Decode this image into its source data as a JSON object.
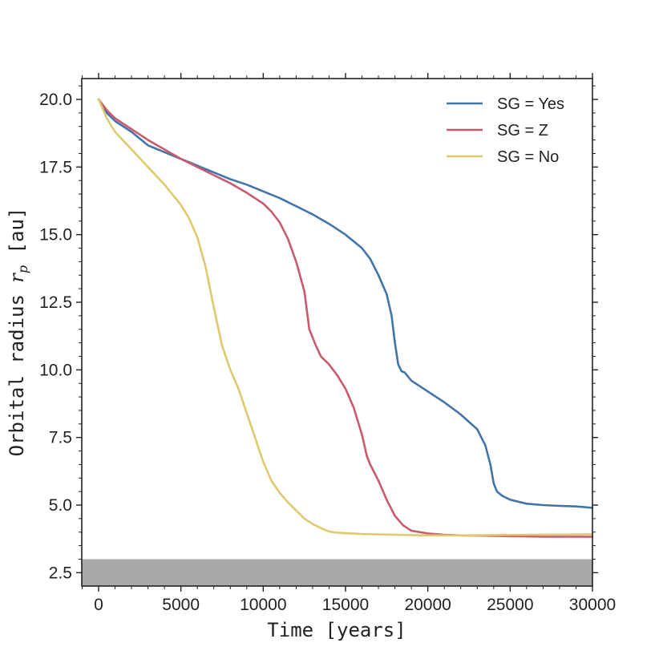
{
  "chart_data": {
    "type": "line",
    "xlabel": "Time [years]",
    "ylabel_text": "Orbital radius ",
    "ylabel_symbol": "r",
    "ylabel_subscript": "p",
    "ylabel_unit": " [au]",
    "xlim": [
      -1000,
      30000
    ],
    "ylim": [
      2.0,
      20.75
    ],
    "x_ticks": [
      0,
      5000,
      10000,
      15000,
      20000,
      25000,
      30000
    ],
    "x_tick_labels": [
      "0",
      "5000",
      "10000",
      "15000",
      "20000",
      "25000",
      "30000"
    ],
    "y_ticks": [
      2.5,
      5.0,
      7.5,
      10.0,
      12.5,
      15.0,
      17.5,
      20.0
    ],
    "y_tick_labels": [
      "2.5",
      "5.0",
      "7.5",
      "10.0",
      "12.5",
      "15.0",
      "17.5",
      "20.0"
    ],
    "shaded_band": {
      "y_from": 2.0,
      "y_to": 3.0,
      "color": "#a9a9a9"
    },
    "grid": false,
    "legend_position": "top-right",
    "series": [
      {
        "name": "SG = Yes",
        "color": "#4374a8",
        "x": [
          0,
          500,
          1000,
          2000,
          3000,
          4000,
          5000,
          6000,
          7000,
          8000,
          9000,
          10000,
          11000,
          12000,
          13000,
          14000,
          15000,
          16000,
          16500,
          17000,
          17500,
          17800,
          18000,
          18200,
          18400,
          18600,
          19000,
          20000,
          21000,
          22000,
          23000,
          23500,
          23800,
          24000,
          24200,
          24500,
          25000,
          26000,
          27000,
          28000,
          29000,
          30000
        ],
        "y": [
          20.0,
          19.5,
          19.2,
          18.8,
          18.3,
          18.05,
          17.8,
          17.55,
          17.3,
          17.05,
          16.85,
          16.6,
          16.35,
          16.05,
          15.75,
          15.4,
          15.0,
          14.5,
          14.1,
          13.5,
          12.8,
          12.0,
          11.0,
          10.2,
          9.95,
          9.9,
          9.6,
          9.2,
          8.8,
          8.35,
          7.8,
          7.2,
          6.5,
          5.8,
          5.5,
          5.35,
          5.2,
          5.05,
          5.0,
          4.97,
          4.95,
          4.9
        ]
      },
      {
        "name": "SG = Z",
        "color": "#c85a6e",
        "x": [
          0,
          500,
          1000,
          2000,
          3000,
          4000,
          5000,
          6000,
          7000,
          8000,
          9000,
          10000,
          10500,
          11000,
          11500,
          12000,
          12500,
          12800,
          13000,
          13200,
          13500,
          14000,
          14500,
          15000,
          15500,
          16000,
          16300,
          16500,
          17000,
          17500,
          18000,
          18500,
          19000,
          20000,
          21000,
          22000,
          23000,
          24000,
          25000,
          26000,
          27000,
          28000,
          29000,
          30000
        ],
        "y": [
          20.0,
          19.6,
          19.3,
          18.9,
          18.5,
          18.15,
          17.8,
          17.5,
          17.2,
          16.9,
          16.55,
          16.15,
          15.85,
          15.45,
          14.85,
          14.0,
          12.9,
          11.5,
          11.2,
          10.9,
          10.5,
          10.2,
          9.8,
          9.3,
          8.6,
          7.6,
          6.8,
          6.5,
          5.9,
          5.2,
          4.6,
          4.25,
          4.05,
          3.95,
          3.9,
          3.88,
          3.87,
          3.86,
          3.85,
          3.84,
          3.83,
          3.83,
          3.83,
          3.83
        ]
      },
      {
        "name": "SG = No",
        "color": "#dfc96f",
        "x": [
          0,
          500,
          1000,
          2000,
          3000,
          4000,
          5000,
          5500,
          6000,
          6500,
          7000,
          7500,
          8000,
          8500,
          9000,
          9500,
          10000,
          10500,
          11000,
          11500,
          12000,
          12500,
          13000,
          13500,
          14000,
          14500,
          15000,
          16000,
          18000,
          20000,
          22000,
          24000,
          26000,
          28000,
          30000
        ],
        "y": [
          20.0,
          19.3,
          18.8,
          18.15,
          17.5,
          16.85,
          16.1,
          15.6,
          14.9,
          13.8,
          12.3,
          10.9,
          10.0,
          9.3,
          8.4,
          7.5,
          6.6,
          5.9,
          5.45,
          5.1,
          4.8,
          4.5,
          4.3,
          4.15,
          4.02,
          3.98,
          3.96,
          3.93,
          3.9,
          3.88,
          3.88,
          3.89,
          3.9,
          3.91,
          3.92
        ]
      }
    ]
  }
}
